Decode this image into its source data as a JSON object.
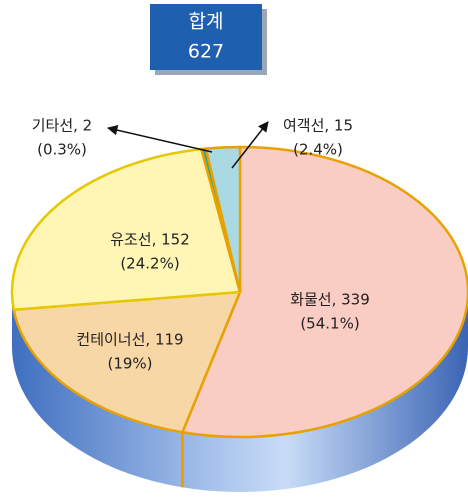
{
  "chart_data": {
    "type": "pie",
    "total_label": "합계",
    "total": 627,
    "labels": [
      "화물선, 339",
      "컨테이너선, 119",
      "유조선, 152",
      "기타선, 2",
      "여객선, 15"
    ],
    "values": [
      339,
      119,
      152,
      2,
      15
    ],
    "percents": [
      54.1,
      19,
      24.2,
      0.3,
      2.4
    ],
    "percent_labels": [
      "(54.1%)",
      "(19%)",
      "(24.2%)",
      "(0.3%)",
      "(2.4%)"
    ],
    "colors": [
      "#f9cdc4",
      "#f8d7a6",
      "#fff6b6",
      "#27a79b",
      "#a9d9e2"
    ]
  }
}
